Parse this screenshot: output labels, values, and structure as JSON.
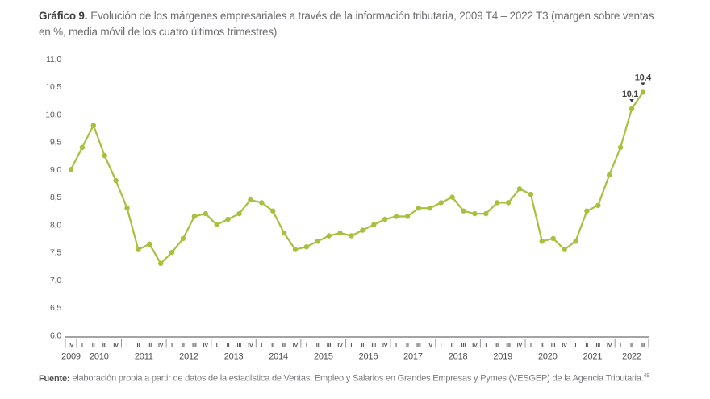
{
  "title": {
    "prefix": "Gráfico 9.",
    "text": "Evolución de los márgenes empresariales a través de la información tributaria, 2009 T4 – 2022 T3 (margen sobre ventas en %, media móvil de los cuatro últimos trimestres)"
  },
  "footer": {
    "prefix": "Fuente:",
    "text": "elaboración propia a partir de datos de la estadística de Ventas, Empleo y Salarios en Grandes Empresas y Pymes (VESGEP) de la Agencia Tributaria.",
    "footnote": "49"
  },
  "chart_data": {
    "type": "line",
    "title": "Evolución de los márgenes empresariales a través de la información tributaria, 2009 T4 – 2022 T3 (margen sobre ventas en %, media móvil de los cuatro últimos trimestres)",
    "ylim": [
      6.0,
      11.0
    ],
    "grid": false,
    "legend": "none",
    "line_color": "#a5c13e",
    "yticks": [
      {
        "label": "11,0",
        "value": 11.0
      },
      {
        "label": "10,5",
        "value": 10.5
      },
      {
        "label": "10,0",
        "value": 10.0
      },
      {
        "label": "9,5",
        "value": 9.5
      },
      {
        "label": "9,0",
        "value": 9.0
      },
      {
        "label": "8,5",
        "value": 8.5
      },
      {
        "label": "8,0",
        "value": 8.0
      },
      {
        "label": "7,5",
        "value": 7.5
      },
      {
        "label": "7,0",
        "value": 7.0
      },
      {
        "label": "6,5",
        "value": 6.5
      },
      {
        "label": "6,0",
        "value": 6.0
      }
    ],
    "groups": [
      {
        "year": "2009",
        "quarters": [
          "IV"
        ]
      },
      {
        "year": "2010",
        "quarters": [
          "I",
          "II",
          "III",
          "IV"
        ]
      },
      {
        "year": "2011",
        "quarters": [
          "I",
          "II",
          "III",
          "IV"
        ]
      },
      {
        "year": "2012",
        "quarters": [
          "I",
          "II",
          "III",
          "IV"
        ]
      },
      {
        "year": "2013",
        "quarters": [
          "I",
          "II",
          "III",
          "IV"
        ]
      },
      {
        "year": "2014",
        "quarters": [
          "I",
          "II",
          "III",
          "IV"
        ]
      },
      {
        "year": "2015",
        "quarters": [
          "I",
          "II",
          "III",
          "IV"
        ]
      },
      {
        "year": "2016",
        "quarters": [
          "I",
          "II",
          "III",
          "IV"
        ]
      },
      {
        "year": "2017",
        "quarters": [
          "I",
          "II",
          "III",
          "IV"
        ]
      },
      {
        "year": "2018",
        "quarters": [
          "I",
          "II",
          "III",
          "IV"
        ]
      },
      {
        "year": "2019",
        "quarters": [
          "I",
          "II",
          "III",
          "IV"
        ]
      },
      {
        "year": "2020",
        "quarters": [
          "I",
          "II",
          "III",
          "IV"
        ]
      },
      {
        "year": "2021",
        "quarters": [
          "I",
          "II",
          "III",
          "IV"
        ]
      },
      {
        "year": "2022",
        "quarters": [
          "I",
          "II",
          "III"
        ]
      }
    ],
    "values": [
      9.0,
      9.4,
      9.8,
      9.25,
      8.8,
      8.3,
      7.55,
      7.65,
      7.3,
      7.5,
      7.75,
      8.15,
      8.2,
      8.0,
      8.1,
      8.2,
      8.45,
      8.4,
      8.25,
      7.85,
      7.55,
      7.6,
      7.7,
      7.8,
      7.85,
      7.8,
      7.9,
      8.0,
      8.1,
      8.15,
      8.15,
      8.3,
      8.3,
      8.4,
      8.5,
      8.25,
      8.2,
      8.2,
      8.4,
      8.4,
      8.65,
      8.55,
      7.7,
      7.75,
      7.55,
      7.7,
      8.25,
      8.35,
      8.9,
      9.4,
      10.1,
      10.4
    ],
    "annotations": [
      {
        "label": "10,1",
        "point_index": 50,
        "dx": -2
      },
      {
        "label": "10,4",
        "point_index": 51,
        "dx": 0
      }
    ]
  },
  "colors": {
    "line": "#a5c13e",
    "axis_text": "#58595b",
    "title_text": "#6d6e71",
    "title_prefix": "#414042"
  }
}
